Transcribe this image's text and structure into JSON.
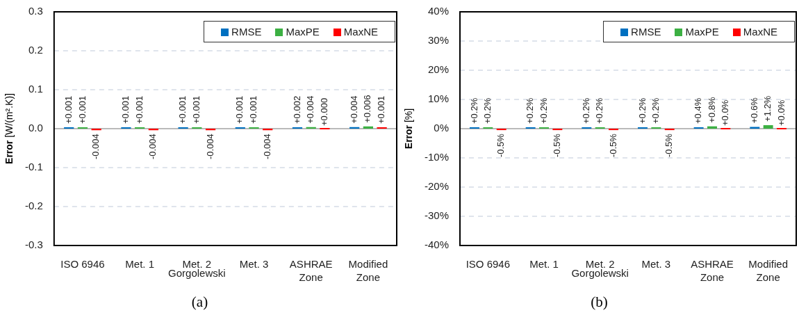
{
  "chart_data": [
    {
      "type": "bar",
      "title": "(a)",
      "ylabel": "Error [W/(m².K)]",
      "categories": [
        "ISO 6946",
        "Met. 1",
        "Met. 2",
        "Met. 3",
        "ASHRAE Zone",
        "Modified Zone"
      ],
      "series": [
        {
          "name": "RMSE",
          "color": "#0070c0",
          "values": [
            0.001,
            0.001,
            0.001,
            0.001,
            0.002,
            0.004
          ],
          "value_labels": [
            "+0.001",
            "+0.001",
            "+0.001",
            "+0.001",
            "+0.002",
            "+0.004"
          ]
        },
        {
          "name": "MaxPE",
          "color": "#3cb043",
          "values": [
            0.001,
            0.001,
            0.001,
            0.001,
            0.004,
            0.006
          ],
          "value_labels": [
            "+0.001",
            "+0.001",
            "+0.001",
            "+0.001",
            "+0.004",
            "+0.006"
          ]
        },
        {
          "name": "MaxNE",
          "color": "#ff0000",
          "values": [
            -0.004,
            -0.004,
            -0.004,
            -0.004,
            0.0,
            0.001
          ],
          "value_labels": [
            "-0.004",
            "-0.004",
            "-0.004",
            "-0.004",
            "+0.000",
            "+0.001"
          ]
        }
      ],
      "ylim": [
        -0.3,
        0.3
      ],
      "yticks": [
        -0.3,
        -0.2,
        -0.1,
        {
          "value": 0,
          "label": "0.0"
        },
        0.1,
        0.2,
        0.3
      ],
      "grid": "y",
      "legend": "top right",
      "annotations": [
        "Gorgolewski"
      ]
    },
    {
      "type": "bar",
      "title": "(b)",
      "ylabel": "Error [%]",
      "categories": [
        "ISO 6946",
        "Met. 1",
        "Met. 2",
        "Met. 3",
        "ASHRAE Zone",
        "Modified Zone"
      ],
      "series": [
        {
          "name": "RMSE",
          "color": "#0070c0",
          "values": [
            0.2,
            0.2,
            0.2,
            0.2,
            0.4,
            0.6
          ],
          "value_labels": [
            "+0.2%",
            "+0.2%",
            "+0.2%",
            "+0.2%",
            "+0.4%",
            "+0.6%"
          ]
        },
        {
          "name": "MaxPE",
          "color": "#3cb043",
          "values": [
            0.2,
            0.2,
            0.2,
            0.2,
            0.8,
            1.2
          ],
          "value_labels": [
            "+0.2%",
            "+0.2%",
            "+0.2%",
            "+0.2%",
            "+0.8%",
            "+1.2%"
          ]
        },
        {
          "name": "MaxNE",
          "color": "#ff0000",
          "values": [
            -0.5,
            -0.5,
            -0.5,
            -0.5,
            0.0,
            0.0
          ],
          "value_labels": [
            "-0.5%",
            "-0.5%",
            "-0.5%",
            "-0.5%",
            "+0.0%",
            "+0.0%"
          ]
        }
      ],
      "ylim": [
        -40,
        40
      ],
      "yticks": [
        {
          "value": -40,
          "label": "-40%"
        },
        {
          "value": -30,
          "label": "-30%"
        },
        {
          "value": -20,
          "label": "-20%"
        },
        {
          "value": -10,
          "label": "-10%"
        },
        {
          "value": 0,
          "label": "0%"
        },
        {
          "value": 10,
          "label": "10%"
        },
        {
          "value": 20,
          "label": "20%"
        },
        {
          "value": 30,
          "label": "30%"
        },
        {
          "value": 40,
          "label": "40%"
        }
      ],
      "grid": "y",
      "legend": "top right",
      "annotations": [
        "Gorgolewski"
      ]
    }
  ]
}
